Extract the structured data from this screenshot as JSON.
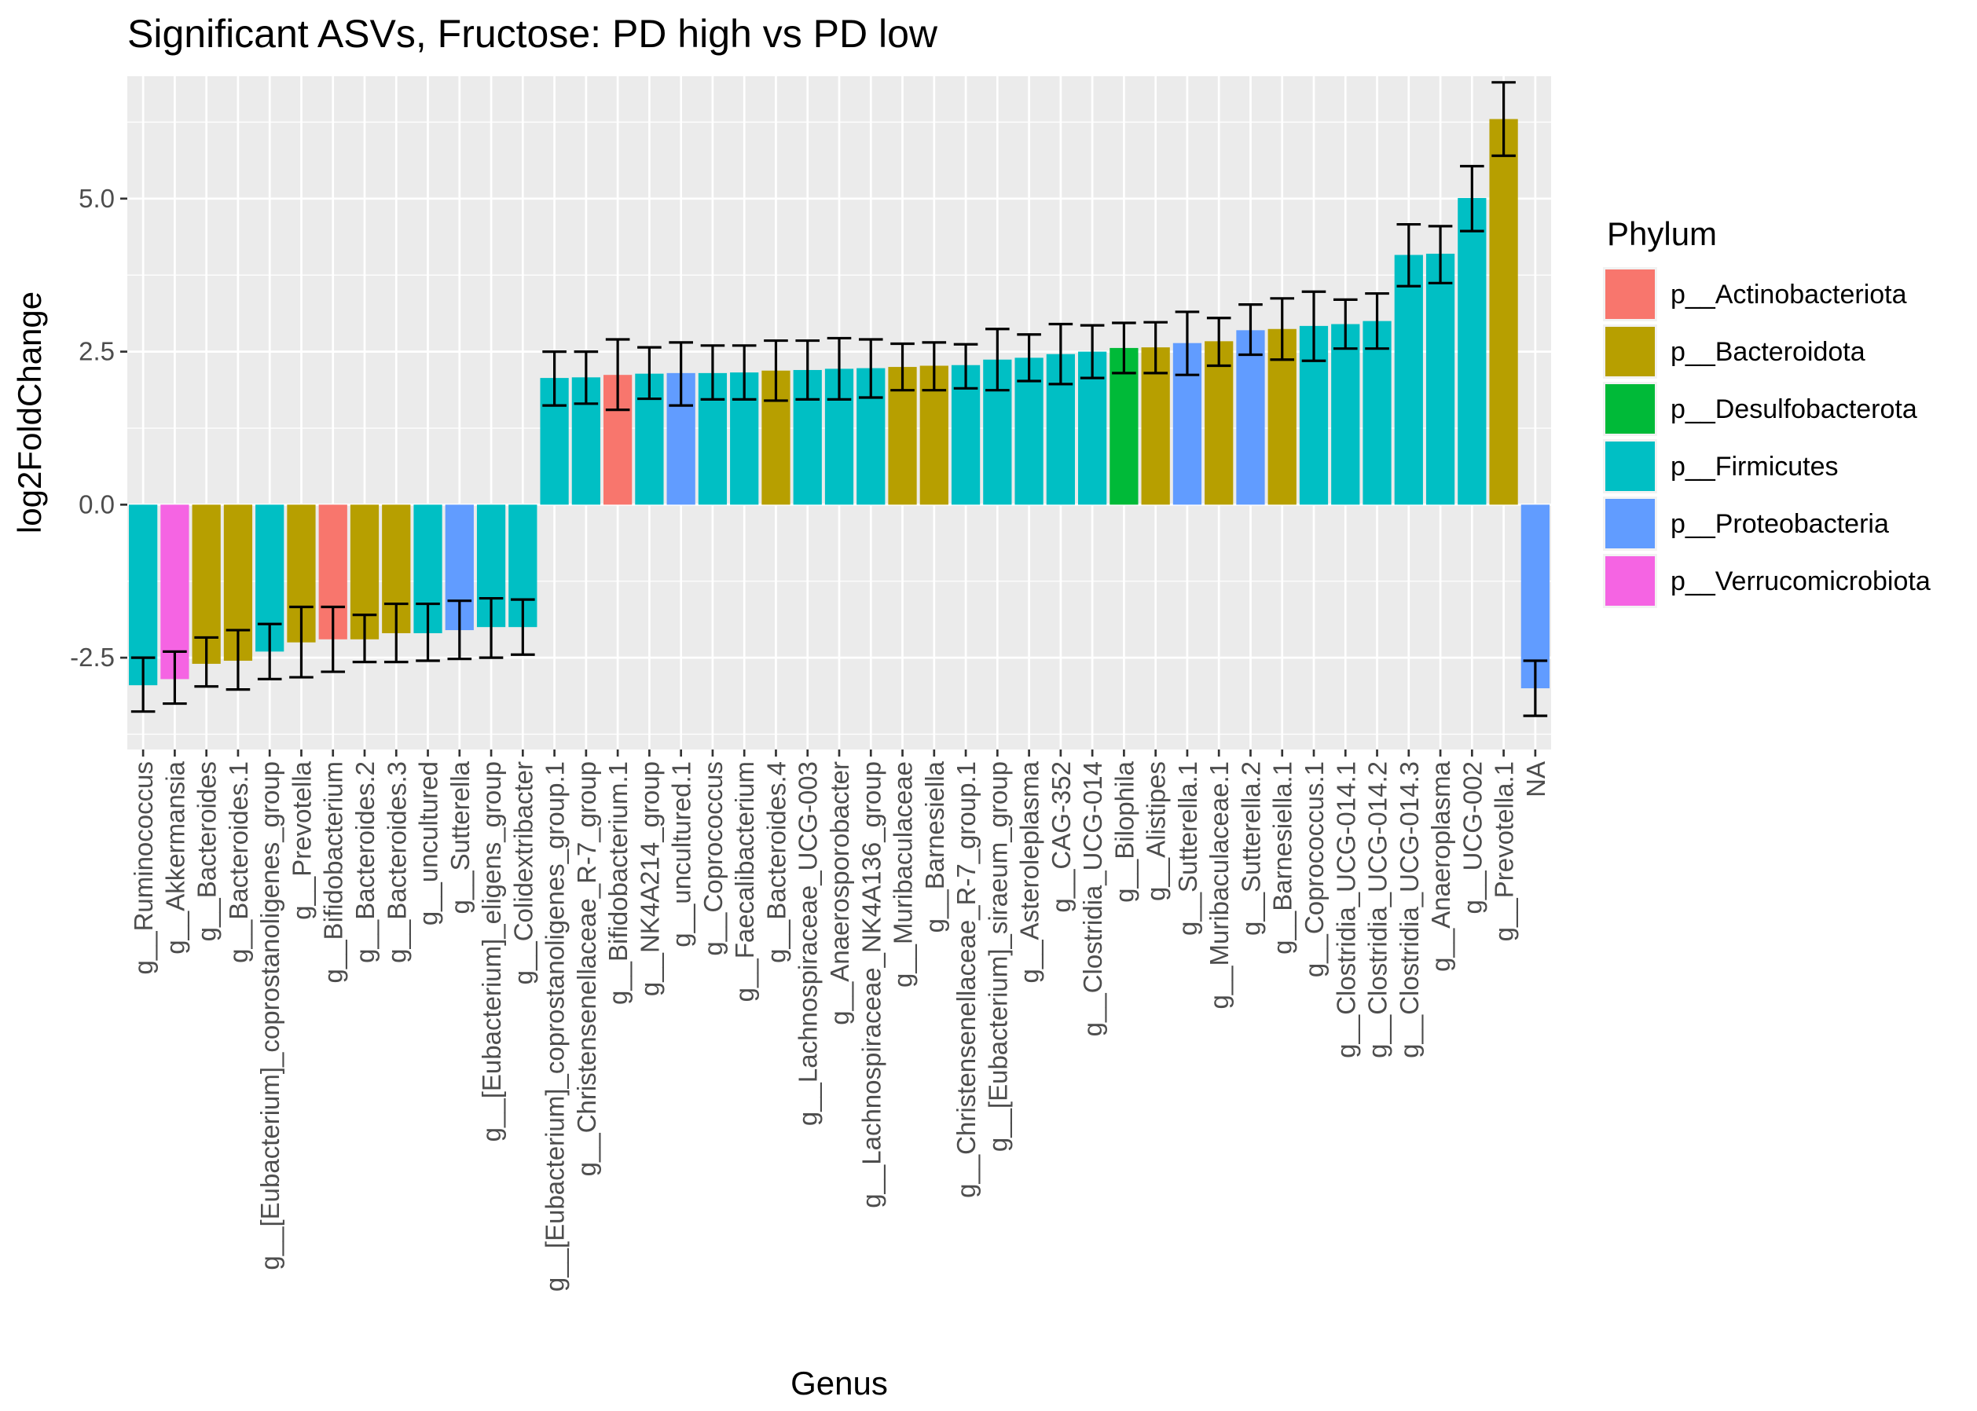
{
  "chart_data": {
    "type": "bar",
    "title": "Significant ASVs, Fructose: PD high vs PD low",
    "xlabel": "Genus",
    "ylabel": "log2FoldChange",
    "ylim": [
      -4.0,
      7.0
    ],
    "yticks": [
      -2.5,
      0.0,
      2.5,
      5.0
    ],
    "ytick_labels": [
      "-2.5",
      "0.0",
      "2.5",
      "5.0"
    ],
    "grid": true,
    "legend": {
      "title": "Phylum",
      "position": "right",
      "entries": [
        {
          "label": "p__Actinobacteriota",
          "color": "#F8766D"
        },
        {
          "label": "p__Bacteroidota",
          "color": "#B79F00"
        },
        {
          "label": "p__Desulfobacterota",
          "color": "#00BA38"
        },
        {
          "label": "p__Firmicutes",
          "color": "#00BFC4"
        },
        {
          "label": "p__Proteobacteria",
          "color": "#619CFF"
        },
        {
          "label": "p__Verrucomicrobiota",
          "color": "#F564E3"
        }
      ]
    },
    "categories": [
      "g__Ruminococcus",
      "g__Akkermansia",
      "g__Bacteroides",
      "g__Bacteroides.1",
      "g__[Eubacterium]_coprostanoligenes_group",
      "g__Prevotella",
      "g__Bifidobacterium",
      "g__Bacteroides.2",
      "g__Bacteroides.3",
      "g__uncultured",
      "g__Sutterella",
      "g__[Eubacterium]_eligens_group",
      "g__Colidextribacter",
      "g__[Eubacterium]_coprostanoligenes_group.1",
      "g__Christensenellaceae_R-7_group",
      "g__Bifidobacterium.1",
      "g__NK4A214_group",
      "g__uncultured.1",
      "g__Coprococcus",
      "g__Faecalibacterium",
      "g__Bacteroides.4",
      "g__Lachnospiraceae_UCG-003",
      "g__Anaerosporobacter",
      "g__Lachnospiraceae_NK4A136_group",
      "g__Muribaculaceae",
      "g__Barnesiella",
      "g__Christensenellaceae_R-7_group.1",
      "g__[Eubacterium]_siraeum_group",
      "g__Asteroleplasma",
      "g__CAG-352",
      "g__Clostridia_UCG-014",
      "g__Bilophila",
      "g__Alistipes",
      "g__Sutterella.1",
      "g__Muribaculaceae.1",
      "g__Sutterella.2",
      "g__Barnesiella.1",
      "g__Coprococcus.1",
      "g__Clostridia_UCG-014.1",
      "g__Clostridia_UCG-014.2",
      "g__Clostridia_UCG-014.3",
      "g__Anaeroplasma",
      "g__UCG-002",
      "g__Prevotella.1",
      "NA"
    ],
    "values": [
      -2.95,
      -2.85,
      -2.6,
      -2.55,
      -2.4,
      -2.25,
      -2.2,
      -2.2,
      -2.1,
      -2.1,
      -2.05,
      -2.0,
      -2.0,
      2.07,
      2.08,
      2.12,
      2.14,
      2.15,
      2.15,
      2.16,
      2.19,
      2.2,
      2.22,
      2.23,
      2.25,
      2.27,
      2.28,
      2.37,
      2.4,
      2.46,
      2.5,
      2.56,
      2.57,
      2.64,
      2.67,
      2.85,
      2.87,
      2.92,
      2.95,
      3.0,
      4.08,
      4.1,
      5.01,
      6.3,
      -3.0
    ],
    "error_low": [
      -3.38,
      -3.25,
      -2.97,
      -3.02,
      -2.85,
      -2.82,
      -2.73,
      -2.57,
      -2.57,
      -2.55,
      -2.52,
      -2.5,
      -2.45,
      1.62,
      1.65,
      1.55,
      1.73,
      1.62,
      1.72,
      1.72,
      1.7,
      1.72,
      1.72,
      1.75,
      1.87,
      1.87,
      1.9,
      1.87,
      2.02,
      1.97,
      2.07,
      2.15,
      2.15,
      2.12,
      2.27,
      2.45,
      2.37,
      2.35,
      2.55,
      2.55,
      3.57,
      3.62,
      4.47,
      5.7,
      -3.45
    ],
    "error_high": [
      -2.5,
      -2.4,
      -2.17,
      -2.05,
      -1.95,
      -1.67,
      -1.67,
      -1.8,
      -1.62,
      -1.62,
      -1.57,
      -1.53,
      -1.55,
      2.5,
      2.5,
      2.7,
      2.57,
      2.65,
      2.6,
      2.6,
      2.68,
      2.68,
      2.72,
      2.7,
      2.63,
      2.65,
      2.62,
      2.87,
      2.78,
      2.95,
      2.93,
      2.97,
      2.98,
      3.15,
      3.05,
      3.27,
      3.37,
      3.48,
      3.35,
      3.45,
      4.58,
      4.55,
      5.53,
      6.9,
      -2.55
    ],
    "phylum": [
      "p__Firmicutes",
      "p__Verrucomicrobiota",
      "p__Bacteroidota",
      "p__Bacteroidota",
      "p__Firmicutes",
      "p__Bacteroidota",
      "p__Actinobacteriota",
      "p__Bacteroidota",
      "p__Bacteroidota",
      "p__Firmicutes",
      "p__Proteobacteria",
      "p__Firmicutes",
      "p__Firmicutes",
      "p__Firmicutes",
      "p__Firmicutes",
      "p__Actinobacteriota",
      "p__Firmicutes",
      "p__Proteobacteria",
      "p__Firmicutes",
      "p__Firmicutes",
      "p__Bacteroidota",
      "p__Firmicutes",
      "p__Firmicutes",
      "p__Firmicutes",
      "p__Bacteroidota",
      "p__Bacteroidota",
      "p__Firmicutes",
      "p__Firmicutes",
      "p__Firmicutes",
      "p__Firmicutes",
      "p__Firmicutes",
      "p__Desulfobacterota",
      "p__Bacteroidota",
      "p__Proteobacteria",
      "p__Bacteroidota",
      "p__Proteobacteria",
      "p__Bacteroidota",
      "p__Firmicutes",
      "p__Firmicutes",
      "p__Firmicutes",
      "p__Firmicutes",
      "p__Firmicutes",
      "p__Firmicutes",
      "p__Bacteroidota",
      "p__Proteobacteria"
    ]
  }
}
